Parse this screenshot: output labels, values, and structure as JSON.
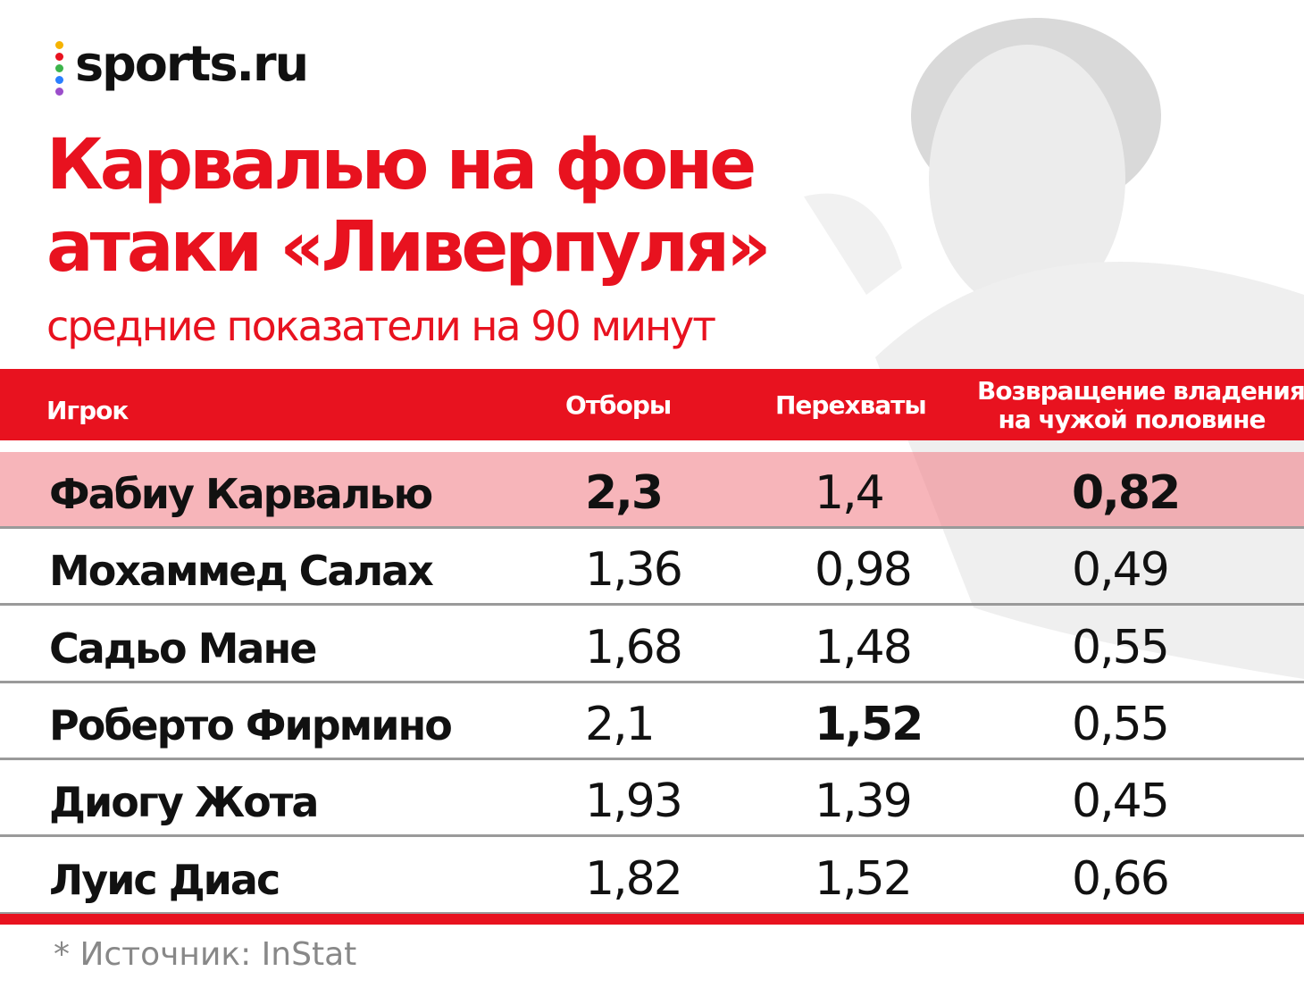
{
  "logo": "sports.ru",
  "title": [
    "Карвалью на фоне",
    "атаки «Ливерпуля»"
  ],
  "subtitle": "средние показатели на 90 минут",
  "table": {
    "headers": [
      "Игрок",
      "Отборы",
      "Перехваты",
      [
        "Возвращение владения",
        "на чужой половине"
      ]
    ],
    "rows": [
      [
        "Фабиу Карвалью",
        "2,3",
        "1,4",
        "0,82"
      ],
      [
        "Мохаммед Салах",
        "1,36",
        "0,98",
        "0,49"
      ],
      [
        "Садьо Мане",
        "1,68",
        "1,48",
        "0,55"
      ],
      [
        "Роберто Фирмино",
        "2,1",
        "1,52",
        "0,55"
      ],
      [
        "Диогу Жота",
        "1,93",
        "1,39",
        "0,45"
      ],
      [
        "Луис Диас",
        "1,82",
        "1,52",
        "0,66"
      ]
    ],
    "highlight_row": 0,
    "bold_cells": [
      [
        0,
        1
      ],
      [
        0,
        3
      ],
      [
        3,
        2
      ]
    ]
  },
  "footnote": "* Источник: InStat"
}
